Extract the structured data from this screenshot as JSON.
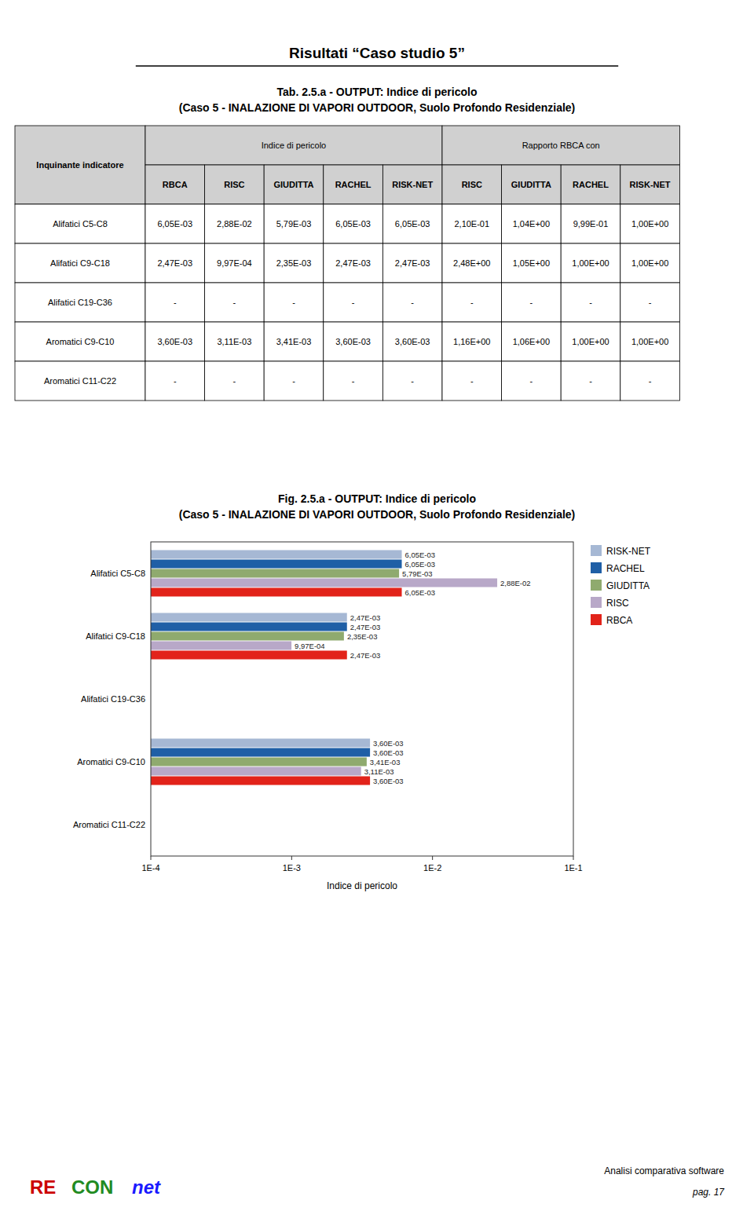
{
  "page_title": "Risultati “Caso studio 5”",
  "table": {
    "title_lines": [
      "Tab. 2.5.a - OUTPUT: Indice di pericolo",
      "(Caso 5 - INALAZIONE DI VAPORI OUTDOOR, Suolo Profondo Residenziale)"
    ],
    "row_header": "Inquinante indicatore",
    "col_groups": [
      "Indice di pericolo",
      "Rapporto RBCA con"
    ],
    "col_headers_left": [
      "RBCA",
      "RISC",
      "GIUDITTA",
      "RACHEL",
      "RISK-NET"
    ],
    "col_headers_right": [
      "RISC",
      "GIUDITTA",
      "RACHEL",
      "RISK-NET"
    ],
    "header_color": "#d0d0d0",
    "border_color": "#000000",
    "rows": [
      {
        "name": "Alifatici C5-C8",
        "left": [
          "6,05E-03",
          "2,88E-02",
          "5,79E-03",
          "6,05E-03",
          "6,05E-03"
        ],
        "right": [
          "2,10E-01",
          "1,04E+00",
          "9,99E-01",
          "1,00E+00"
        ]
      },
      {
        "name": "Alifatici C9-C18",
        "left": [
          "2,47E-03",
          "9,97E-04",
          "2,35E-03",
          "2,47E-03",
          "2,47E-03"
        ],
        "right": [
          "2,48E+00",
          "1,05E+00",
          "1,00E+00",
          "1,00E+00"
        ]
      },
      {
        "name": "Alifatici C19-C36",
        "left": [
          "-",
          "-",
          "-",
          "-",
          "-"
        ],
        "right": [
          "-",
          "-",
          "-",
          "-"
        ]
      },
      {
        "name": "Aromatici C9-C10",
        "left": [
          "3,60E-03",
          "3,11E-03",
          "3,41E-03",
          "3,60E-03",
          "3,60E-03"
        ],
        "right": [
          "1,16E+00",
          "1,06E+00",
          "1,00E+00",
          "1,00E+00"
        ]
      },
      {
        "name": "Aromatici C11-C22",
        "left": [
          "-",
          "-",
          "-",
          "-",
          "-"
        ],
        "right": [
          "-",
          "-",
          "-",
          "-"
        ]
      }
    ]
  },
  "chart_data": {
    "type": "bar",
    "orientation": "horizontal",
    "title": "Fig. 2.5.a - OUTPUT: Indice di pericolo",
    "subtitle": "(Caso 5 - INALAZIONE DI VAPORI OUTDOOR, Suolo Profondo Residenziale)",
    "categories": [
      "Aromatici C11-C22",
      "Aromatici C9-C10",
      "Alifatici C19-C36",
      "Alifatici C9-C18",
      "Alifatici C5-C8"
    ],
    "series": [
      {
        "name": "RISK-NET",
        "color": "#a6b8d4",
        "values": [
          null,
          0.0036,
          null,
          0.00247,
          0.00605
        ],
        "value_labels": [
          null,
          "3,60E-03",
          null,
          "2,47E-03",
          "6,05E-03"
        ]
      },
      {
        "name": "RACHEL",
        "color": "#1f5fa6",
        "values": [
          null,
          0.0036,
          null,
          0.00247,
          0.00605
        ],
        "value_labels": [
          null,
          "3,60E-03",
          null,
          "2,47E-03",
          "6,05E-03"
        ]
      },
      {
        "name": "GIUDITTA",
        "color": "#8faa6e",
        "values": [
          null,
          0.00341,
          null,
          0.00235,
          0.00579
        ],
        "value_labels": [
          null,
          "3,41E-03",
          null,
          "2,35E-03",
          "5,79E-03"
        ]
      },
      {
        "name": "RISC",
        "color": "#b8a8c8",
        "values": [
          null,
          0.00311,
          null,
          0.000997,
          0.0288
        ],
        "value_labels": [
          null,
          "3,11E-03",
          null,
          "9,97E-04",
          "2,88E-02"
        ]
      },
      {
        "name": "RBCA",
        "color": "#e2231a",
        "values": [
          null,
          0.0036,
          null,
          0.00247,
          0.00605
        ],
        "value_labels": [
          null,
          "3,60E-03",
          null,
          "2,47E-03",
          "6,05E-03"
        ]
      }
    ],
    "log": "x",
    "xlim": [
      0.0001,
      0.1
    ],
    "xticks": [
      {
        "value": 0.0001,
        "label": "1E-4"
      },
      {
        "value": 0.001,
        "label": "1E-3"
      },
      {
        "value": 0.01,
        "label": "1E-2"
      },
      {
        "value": 0.1,
        "label": "1E-1"
      }
    ],
    "xlabel": "Indice di pericolo",
    "grid": false,
    "legend": "right",
    "data_labels": true
  },
  "footer": {
    "logo": [
      {
        "text": "RE",
        "color": "#cc0000"
      },
      {
        "text": "CON",
        "color": "#228B22"
      },
      {
        "text": "net",
        "color": "#1a1aff"
      }
    ],
    "right_lines": [
      "Analisi comparativa software",
      "pag. 17"
    ]
  }
}
